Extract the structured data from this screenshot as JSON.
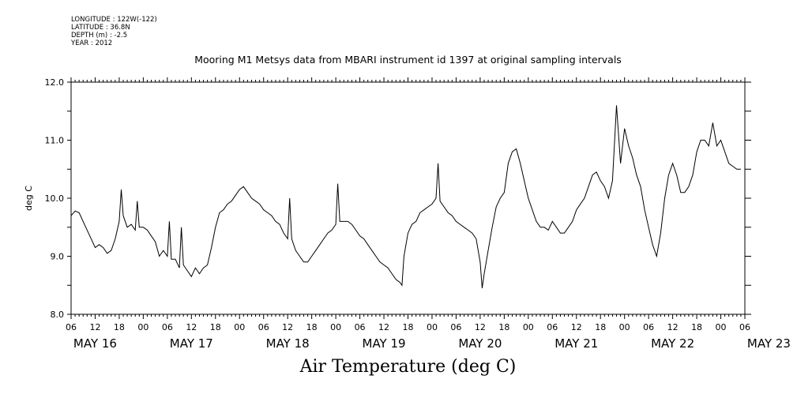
{
  "metadata": [
    {
      "label": "LONGITUDE",
      "value": "122W(-122)"
    },
    {
      "label": "LATITUDE",
      "value": "36.8N"
    },
    {
      "label": "DEPTH (m)",
      "value": "-2.5"
    },
    {
      "label": "YEAR",
      "value": "2012"
    }
  ],
  "chart_data": {
    "type": "line",
    "title": "Mooring M1 Metsys data from MBARI instrument id 1397 at original sampling intervals",
    "xlabel": "Air Temperature (deg C)",
    "ylabel": "deg C",
    "ylim": [
      8.0,
      12.0
    ],
    "yticks": [
      "8.0",
      "9.0",
      "10.0",
      "11.0",
      "12.0"
    ],
    "xlim_hours": [
      6,
      174
    ],
    "x_tick_labels": [
      "06",
      "12",
      "18",
      "00",
      "06",
      "12",
      "18",
      "00",
      "06",
      "12",
      "18",
      "00",
      "06",
      "12",
      "18",
      "00",
      "06",
      "12",
      "18",
      "00",
      "06",
      "12",
      "18",
      "00",
      "06",
      "12",
      "18",
      "00",
      "06"
    ],
    "day_labels": [
      "MAY 16",
      "MAY 17",
      "MAY 18",
      "MAY 19",
      "MAY 20",
      "MAY 21",
      "MAY 22",
      "MAY 23"
    ],
    "grid": false,
    "series": [
      {
        "points": [
          [
            6,
            9.7
          ],
          [
            7,
            9.78
          ],
          [
            8,
            9.75
          ],
          [
            9,
            9.6
          ],
          [
            10,
            9.45
          ],
          [
            11,
            9.3
          ],
          [
            12,
            9.15
          ],
          [
            13,
            9.2
          ],
          [
            14,
            9.15
          ],
          [
            15,
            9.05
          ],
          [
            16,
            9.1
          ],
          [
            17,
            9.3
          ],
          [
            18,
            9.6
          ],
          [
            18.5,
            10.15
          ],
          [
            19,
            9.7
          ],
          [
            20,
            9.5
          ],
          [
            21,
            9.55
          ],
          [
            22,
            9.45
          ],
          [
            22.5,
            9.95
          ],
          [
            23,
            9.5
          ],
          [
            24,
            9.5
          ],
          [
            25,
            9.45
          ],
          [
            26,
            9.35
          ],
          [
            27,
            9.25
          ],
          [
            28,
            9.0
          ],
          [
            29,
            9.1
          ],
          [
            30,
            9.0
          ],
          [
            30.5,
            9.6
          ],
          [
            31,
            8.95
          ],
          [
            32,
            8.95
          ],
          [
            33,
            8.8
          ],
          [
            33.5,
            9.5
          ],
          [
            34,
            8.85
          ],
          [
            35,
            8.75
          ],
          [
            36,
            8.65
          ],
          [
            37,
            8.8
          ],
          [
            38,
            8.7
          ],
          [
            39,
            8.8
          ],
          [
            40,
            8.85
          ],
          [
            41,
            9.15
          ],
          [
            42,
            9.5
          ],
          [
            43,
            9.75
          ],
          [
            44,
            9.8
          ],
          [
            45,
            9.9
          ],
          [
            46,
            9.95
          ],
          [
            47,
            10.05
          ],
          [
            48,
            10.15
          ],
          [
            49,
            10.2
          ],
          [
            50,
            10.1
          ],
          [
            51,
            10.0
          ],
          [
            52,
            9.95
          ],
          [
            53,
            9.9
          ],
          [
            54,
            9.8
          ],
          [
            55,
            9.75
          ],
          [
            56,
            9.7
          ],
          [
            57,
            9.6
          ],
          [
            58,
            9.55
          ],
          [
            59,
            9.4
          ],
          [
            60,
            9.3
          ],
          [
            60.5,
            10.0
          ],
          [
            61,
            9.3
          ],
          [
            62,
            9.1
          ],
          [
            63,
            9.0
          ],
          [
            64,
            8.9
          ],
          [
            65,
            8.9
          ],
          [
            66,
            9.0
          ],
          [
            67,
            9.1
          ],
          [
            68,
            9.2
          ],
          [
            69,
            9.3
          ],
          [
            70,
            9.4
          ],
          [
            71,
            9.45
          ],
          [
            72,
            9.55
          ],
          [
            72.5,
            10.25
          ],
          [
            73,
            9.6
          ],
          [
            74,
            9.6
          ],
          [
            75,
            9.6
          ],
          [
            76,
            9.55
          ],
          [
            77,
            9.45
          ],
          [
            78,
            9.35
          ],
          [
            79,
            9.3
          ],
          [
            80,
            9.2
          ],
          [
            81,
            9.1
          ],
          [
            82,
            9.0
          ],
          [
            83,
            8.9
          ],
          [
            84,
            8.85
          ],
          [
            85,
            8.8
          ],
          [
            86,
            8.7
          ],
          [
            87,
            8.6
          ],
          [
            88,
            8.55
          ],
          [
            88.5,
            8.5
          ],
          [
            89,
            9.0
          ],
          [
            90,
            9.4
          ],
          [
            91,
            9.55
          ],
          [
            92,
            9.6
          ],
          [
            93,
            9.75
          ],
          [
            94,
            9.8
          ],
          [
            95,
            9.85
          ],
          [
            96,
            9.9
          ],
          [
            97,
            10.0
          ],
          [
            97.5,
            10.6
          ],
          [
            98,
            9.95
          ],
          [
            99,
            9.85
          ],
          [
            100,
            9.75
          ],
          [
            101,
            9.7
          ],
          [
            102,
            9.6
          ],
          [
            103,
            9.55
          ],
          [
            104,
            9.5
          ],
          [
            105,
            9.45
          ],
          [
            106,
            9.4
          ],
          [
            107,
            9.3
          ],
          [
            108,
            8.9
          ],
          [
            108.5,
            8.45
          ],
          [
            109,
            8.7
          ],
          [
            110,
            9.1
          ],
          [
            111,
            9.5
          ],
          [
            112,
            9.85
          ],
          [
            113,
            10.0
          ],
          [
            114,
            10.1
          ],
          [
            115,
            10.6
          ],
          [
            116,
            10.8
          ],
          [
            117,
            10.85
          ],
          [
            118,
            10.6
          ],
          [
            119,
            10.3
          ],
          [
            120,
            10.0
          ],
          [
            121,
            9.8
          ],
          [
            122,
            9.6
          ],
          [
            123,
            9.5
          ],
          [
            124,
            9.5
          ],
          [
            125,
            9.45
          ],
          [
            126,
            9.6
          ],
          [
            127,
            9.5
          ],
          [
            128,
            9.4
          ],
          [
            129,
            9.4
          ],
          [
            130,
            9.5
          ],
          [
            131,
            9.6
          ],
          [
            132,
            9.8
          ],
          [
            133,
            9.9
          ],
          [
            134,
            10.0
          ],
          [
            135,
            10.2
          ],
          [
            136,
            10.4
          ],
          [
            137,
            10.45
          ],
          [
            138,
            10.3
          ],
          [
            139,
            10.2
          ],
          [
            140,
            10.0
          ],
          [
            141,
            10.3
          ],
          [
            142,
            11.6
          ],
          [
            143,
            10.6
          ],
          [
            144,
            11.2
          ],
          [
            145,
            10.9
          ],
          [
            146,
            10.7
          ],
          [
            147,
            10.4
          ],
          [
            148,
            10.2
          ],
          [
            149,
            9.8
          ],
          [
            150,
            9.5
          ],
          [
            151,
            9.2
          ],
          [
            152,
            9.0
          ],
          [
            153,
            9.4
          ],
          [
            154,
            10.0
          ],
          [
            155,
            10.4
          ],
          [
            156,
            10.6
          ],
          [
            157,
            10.4
          ],
          [
            158,
            10.1
          ],
          [
            159,
            10.1
          ],
          [
            160,
            10.2
          ],
          [
            161,
            10.4
          ],
          [
            162,
            10.8
          ],
          [
            163,
            11.0
          ],
          [
            164,
            11.0
          ],
          [
            165,
            10.9
          ],
          [
            166,
            11.3
          ],
          [
            167,
            10.9
          ],
          [
            168,
            11.0
          ],
          [
            169,
            10.8
          ],
          [
            170,
            10.6
          ],
          [
            171,
            10.55
          ],
          [
            172,
            10.5
          ],
          [
            173,
            10.5
          ]
        ]
      }
    ]
  }
}
